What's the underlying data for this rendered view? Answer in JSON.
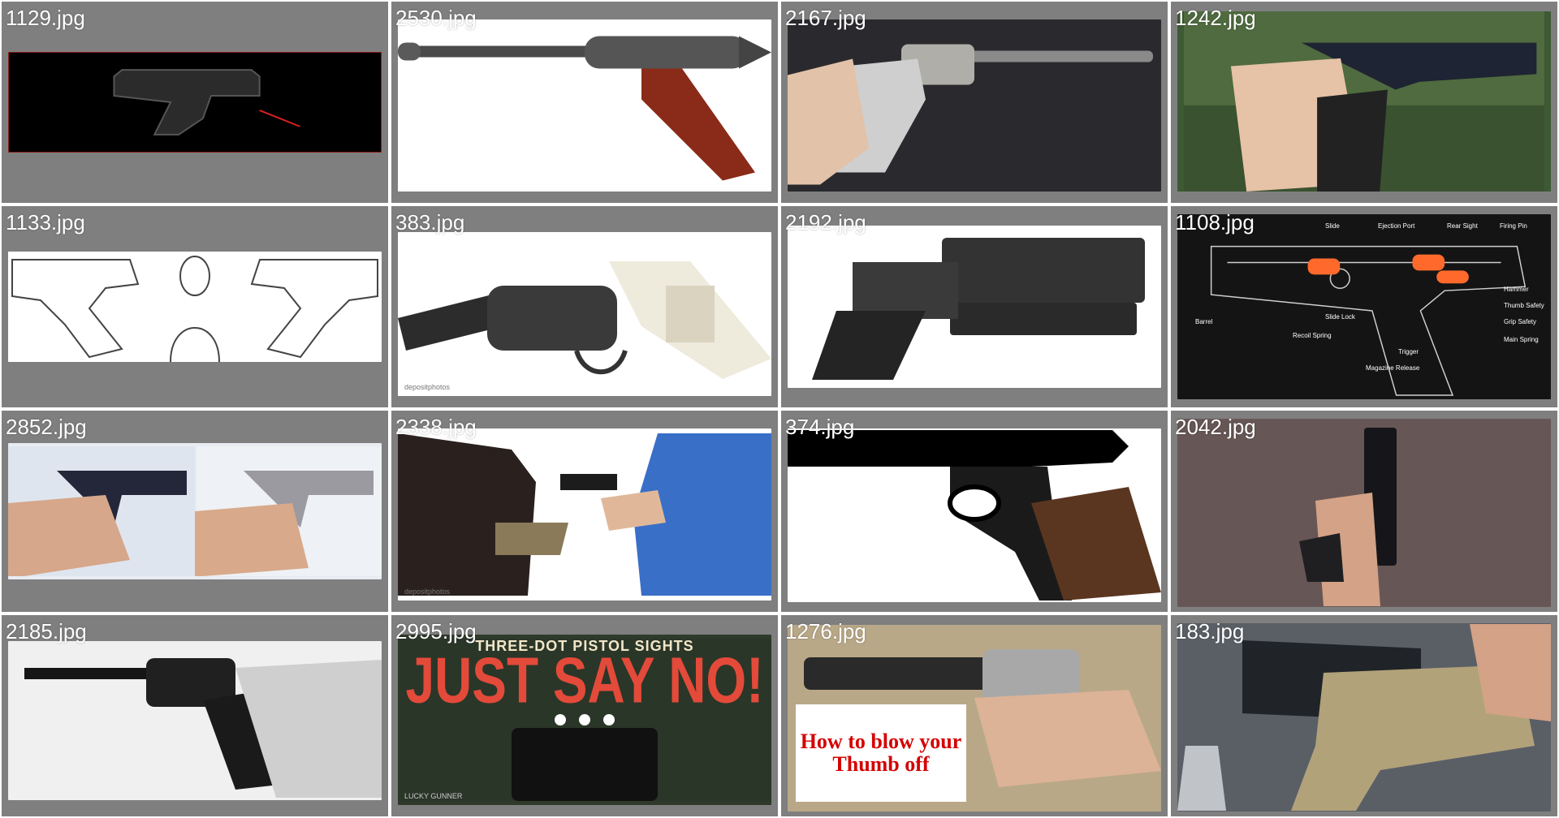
{
  "gallery": {
    "items": [
      {
        "filename": "1129.jpg",
        "subject": "pistol-with-laser",
        "bg": "#000000"
      },
      {
        "filename": "2530.jpg",
        "subject": "prop-pistol",
        "bg": "#ffffff"
      },
      {
        "filename": "2167.jpg",
        "subject": "ornate-pistol",
        "bg": "#2a2a2e"
      },
      {
        "filename": "1242.jpg",
        "subject": "hand-holding-pistol",
        "bg": "#3d5a34"
      },
      {
        "filename": "1133.jpg",
        "subject": "pistols-sketch",
        "bg": "#ffffff"
      },
      {
        "filename": "383.jpg",
        "subject": "revolver",
        "bg": "#ffffff"
      },
      {
        "filename": "2192.jpg",
        "subject": "scifi-pistol",
        "bg": "#ffffff"
      },
      {
        "filename": "1108.jpg",
        "subject": "pistol-diagram",
        "bg": "#151515"
      },
      {
        "filename": "2852.jpg",
        "subject": "grip-comparison",
        "bg": "#e8ecf2"
      },
      {
        "filename": "2338.jpg",
        "subject": "robbery-scene",
        "bg": "#ffffff"
      },
      {
        "filename": "374.jpg",
        "subject": "pistol-silhouette",
        "bg": "#ffffff"
      },
      {
        "filename": "2042.jpg",
        "subject": "hand-holding-pistol-upright",
        "bg": "#6b5a5a"
      },
      {
        "filename": "2185.jpg",
        "subject": "vintage-revolver-grip",
        "bg": "#f0f0f0"
      },
      {
        "filename": "2995.jpg",
        "subject": "pistol-sights-poster",
        "bg": "#2f3a2b"
      },
      {
        "filename": "1276.jpg",
        "subject": "revolver-thumb-warning",
        "bg": "#c9b99a"
      },
      {
        "filename": "183.jpg",
        "subject": "tan-pistol-closeup",
        "bg": "#5a5f66"
      }
    ],
    "overlays": {
      "diagram_labels": [
        "Slide",
        "Ejection Port",
        "Rear Sight",
        "Firing Pin",
        "Hammer",
        "Thumb Safety",
        "Grip Safety",
        "Main Spring",
        "Barrel",
        "Slide Lock",
        "Recoil Spring",
        "Trigger",
        "Magazine Release"
      ],
      "poster_top": "THREE-DOT PISTOL SIGHTS",
      "poster_main": "JUST SAY NO!",
      "poster_brand": "LUCKY GUNNER",
      "warning_text": "How to blow your Thumb off"
    }
  }
}
